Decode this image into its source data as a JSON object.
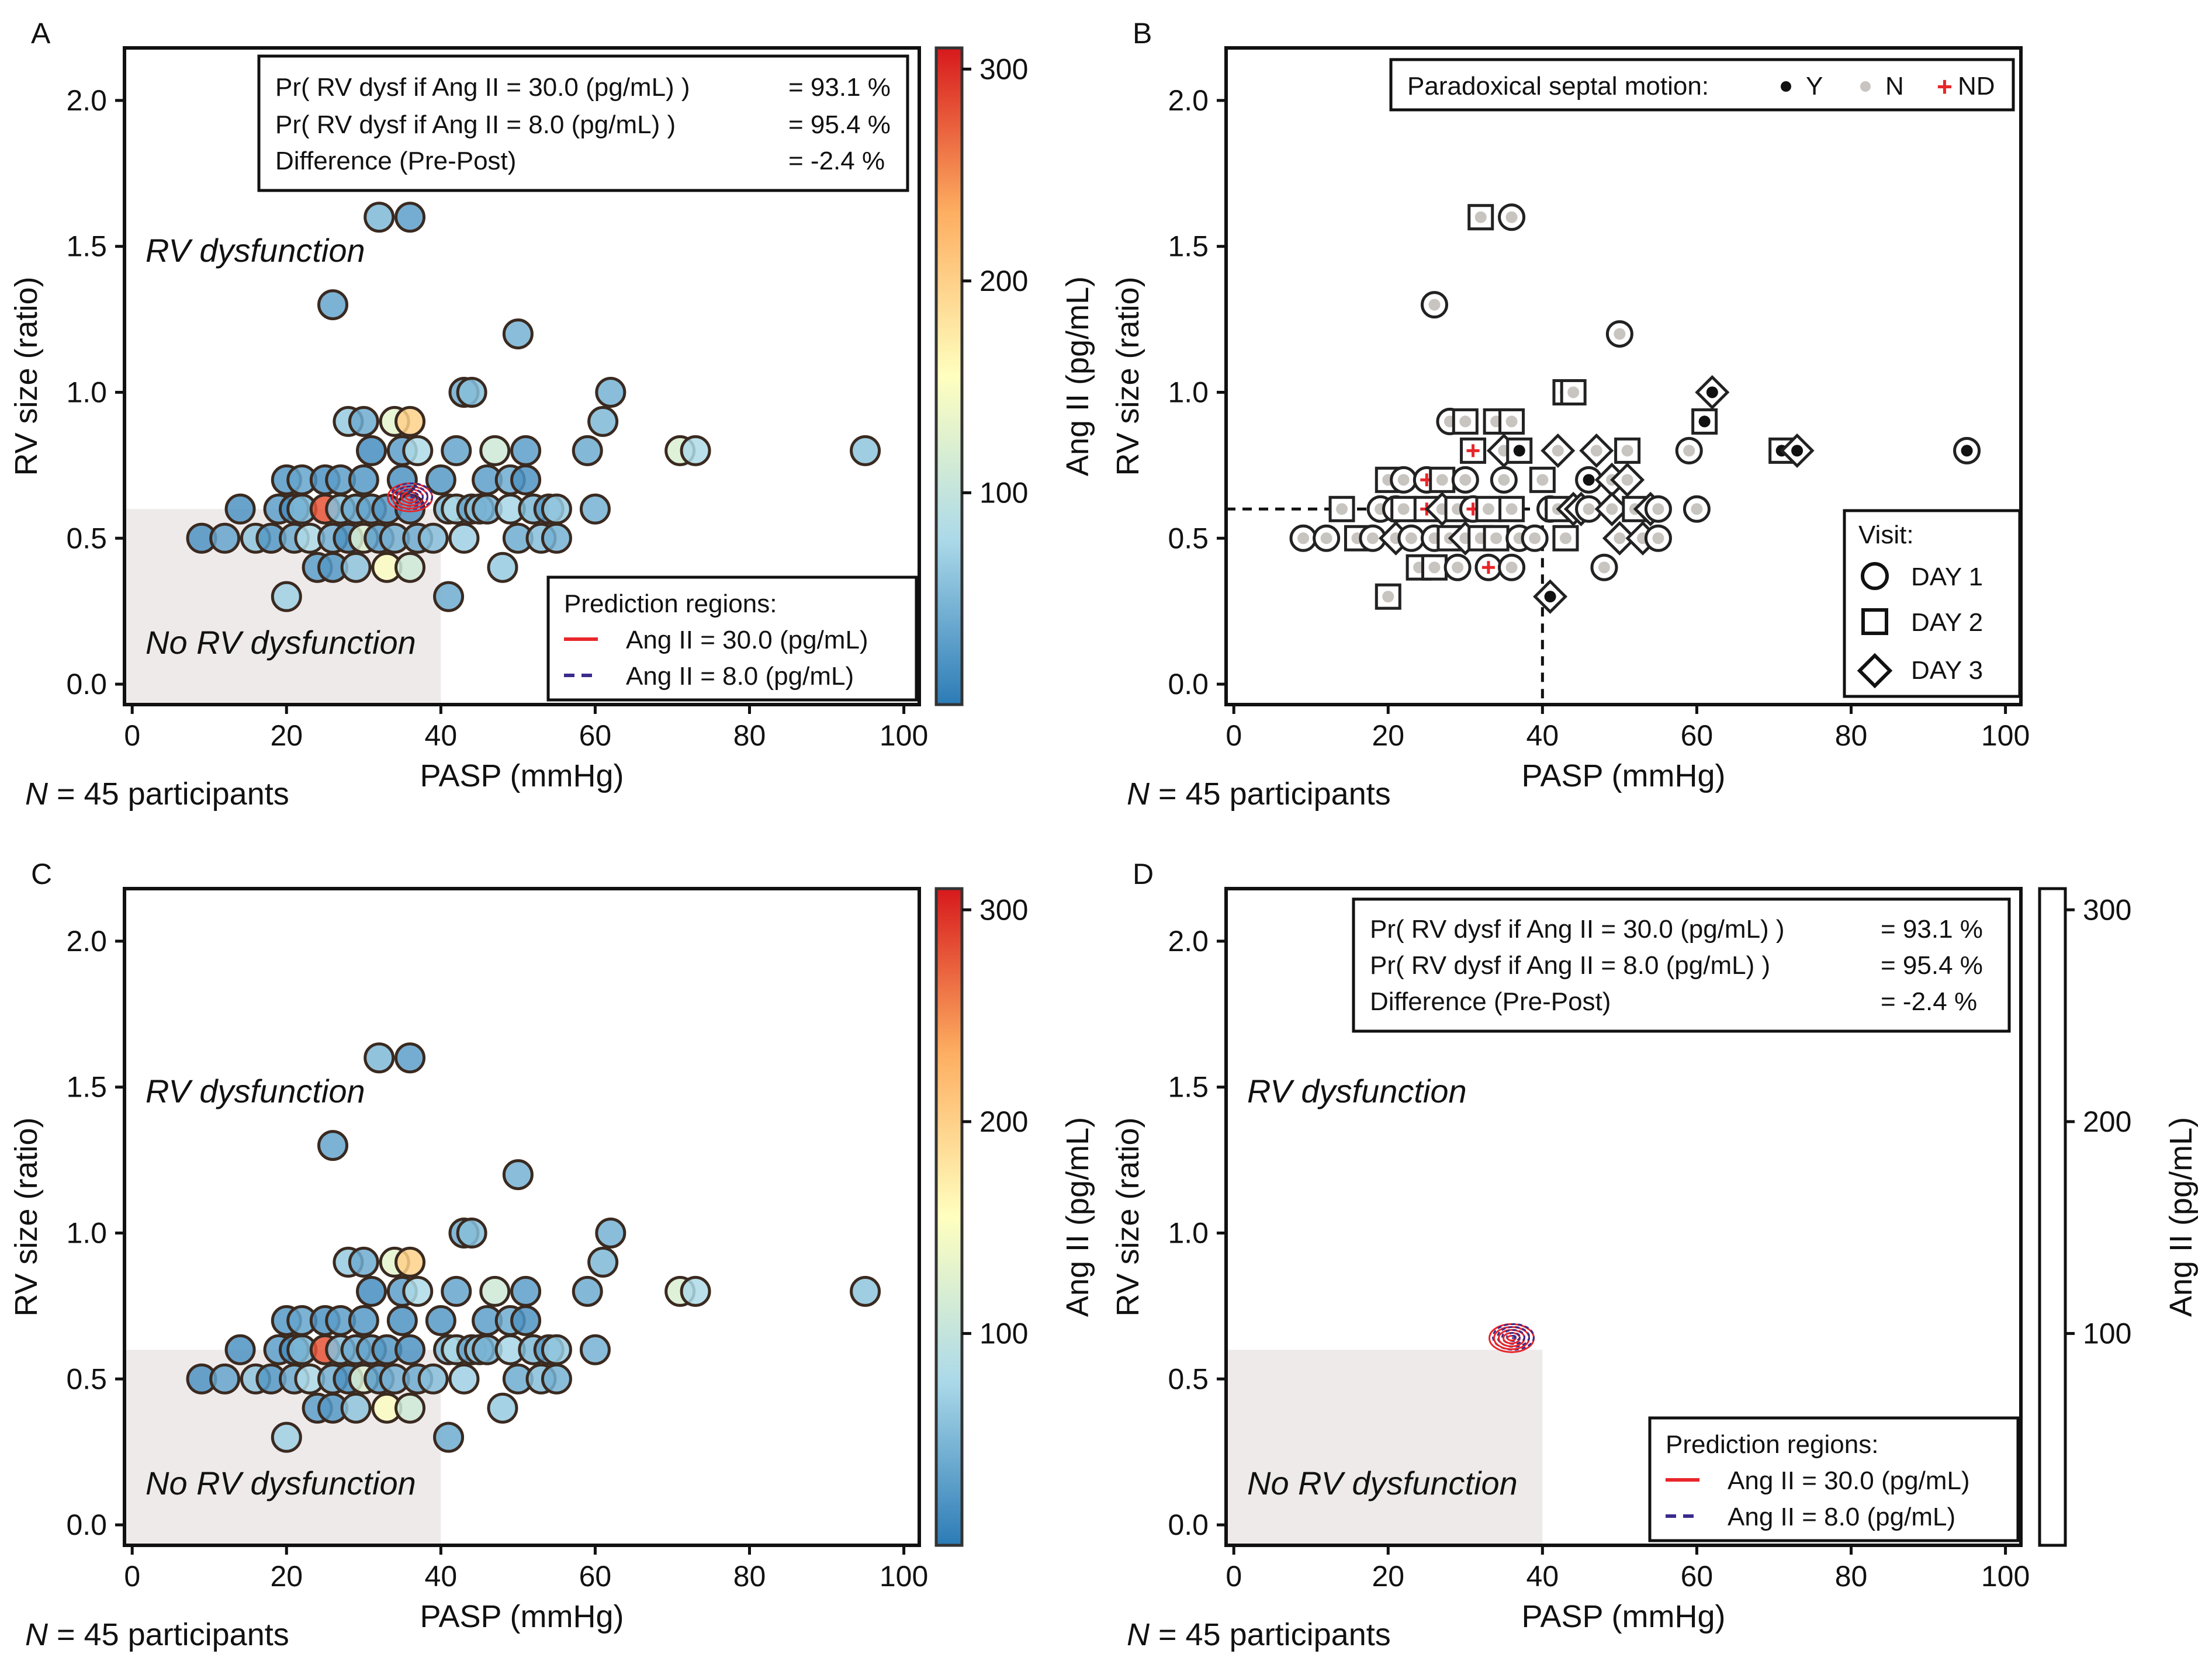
{
  "figure_title": "Figure: RV size vs PASP by Ang II (panels A-D)",
  "colorbar": {
    "label": "Ang II (pg/mL)",
    "ticks": [
      "100",
      "200",
      "300"
    ],
    "tick_values": [
      100,
      200,
      300
    ],
    "range": [
      0,
      310
    ],
    "colors": [
      "#2c7bb6",
      "#abd9e9",
      "#ffffbf",
      "#fdae61",
      "#d7191c"
    ]
  },
  "panels": [
    {
      "letter": "A"
    },
    {
      "letter": "B"
    },
    {
      "letter": "C"
    },
    {
      "letter": "D"
    }
  ],
  "probability_box": {
    "lines": [
      {
        "label": "Pr( RV dysf if Ang II = 30.0 (pg/mL) )",
        "value": "= 93.1 %"
      },
      {
        "label": "Pr( RV dysf if Ang II = 8.0 (pg/mL) )",
        "value": "= 95.4 %"
      },
      {
        "label": "Difference (Pre-Post)",
        "value": "= -2.4 %"
      }
    ]
  },
  "prediction_legend": {
    "title": "Prediction regions:",
    "items": [
      {
        "label": "Ang II = 30.0 (pg/mL)",
        "color": "#e8262a",
        "style": "solid"
      },
      {
        "label": "Ang II = 8.0 (pg/mL)",
        "color": "#3b2a8c",
        "style": "dashed"
      }
    ]
  },
  "septal_legend": {
    "title": "Paradoxical septal motion:",
    "items": [
      {
        "symbol": "●",
        "label": "Y",
        "color": "#111111"
      },
      {
        "symbol": "●",
        "label": "N",
        "color": "#c8c4c0"
      },
      {
        "symbol": "+",
        "label": "ND",
        "color": "#e8262a"
      }
    ]
  },
  "visit_legend": {
    "title": "Visit:",
    "items": [
      {
        "label": "DAY 1",
        "marker": "circle"
      },
      {
        "label": "DAY 2",
        "marker": "square"
      },
      {
        "label": "DAY 3",
        "marker": "diamond"
      }
    ]
  },
  "region_labels": {
    "dysfunction": "RV dysfunction",
    "no_dysfunction": "No RV dysfunction"
  },
  "participants_note": {
    "prefix": "N",
    "suffix": " = 45 participants"
  },
  "chart_data": {
    "type": "scatter",
    "xlabel": "PASP (mmHg)",
    "ylabel": "RV size (ratio)",
    "xlim": [
      -1,
      102
    ],
    "ylim": [
      -0.07,
      2.18
    ],
    "xticks": [
      "0",
      "20",
      "40",
      "60",
      "80",
      "100"
    ],
    "xtick_values": [
      0,
      20,
      40,
      60,
      80,
      100
    ],
    "yticks": [
      "0.0",
      "0.5",
      "1.0",
      "1.5",
      "2.0"
    ],
    "ytick_values": [
      0.0,
      0.5,
      1.0,
      1.5,
      2.0
    ],
    "thresholds": {
      "pasp": 40,
      "rv_size": 0.6
    },
    "prediction_center": {
      "pasp": 36,
      "rv_size": 0.64
    },
    "points": [
      [
        9,
        0.5,
        20,
        1,
        "N"
      ],
      [
        12,
        0.5,
        35,
        1,
        "N"
      ],
      [
        14,
        0.6,
        20,
        2,
        "N"
      ],
      [
        16,
        0.5,
        60,
        2,
        "N"
      ],
      [
        18,
        0.5,
        25,
        1,
        "N"
      ],
      [
        19,
        0.6,
        30,
        1,
        "N"
      ],
      [
        20,
        0.7,
        25,
        2,
        "N"
      ],
      [
        20,
        0.3,
        70,
        2,
        "N"
      ],
      [
        21,
        0.6,
        15,
        1,
        "N"
      ],
      [
        21,
        0.5,
        40,
        3,
        "N"
      ],
      [
        22,
        0.7,
        35,
        1,
        "N"
      ],
      [
        22,
        0.6,
        50,
        2,
        "N"
      ],
      [
        23,
        0.5,
        80,
        1,
        "N"
      ],
      [
        24,
        0.4,
        30,
        2,
        "N"
      ],
      [
        25,
        0.6,
        280,
        2,
        "ND"
      ],
      [
        25,
        0.7,
        20,
        1,
        "ND"
      ],
      [
        26,
        0.5,
        45,
        1,
        "N"
      ],
      [
        26,
        0.4,
        25,
        2,
        "N"
      ],
      [
        26,
        1.3,
        35,
        1,
        "N"
      ],
      [
        27,
        0.7,
        30,
        2,
        "N"
      ],
      [
        27,
        0.6,
        55,
        3,
        "N"
      ],
      [
        28,
        0.5,
        20,
        2,
        "N"
      ],
      [
        28,
        0.9,
        65,
        1,
        "N"
      ],
      [
        29,
        0.6,
        40,
        2,
        "N"
      ],
      [
        29,
        0.4,
        60,
        1,
        "N"
      ],
      [
        30,
        0.9,
        40,
        2,
        "N"
      ],
      [
        30,
        0.5,
        120,
        3,
        "N"
      ],
      [
        30,
        0.7,
        25,
        1,
        "N"
      ],
      [
        31,
        0.6,
        35,
        1,
        "ND"
      ],
      [
        31,
        0.8,
        15,
        2,
        "ND"
      ],
      [
        32,
        1.6,
        50,
        2,
        "N"
      ],
      [
        32,
        0.5,
        30,
        2,
        "N"
      ],
      [
        33,
        0.6,
        25,
        2,
        "N"
      ],
      [
        33,
        0.4,
        150,
        1,
        "ND"
      ],
      [
        34,
        0.9,
        130,
        2,
        "N"
      ],
      [
        34,
        0.5,
        45,
        2,
        "N"
      ],
      [
        35,
        0.7,
        20,
        1,
        "N"
      ],
      [
        35,
        0.8,
        30,
        3,
        "N"
      ],
      [
        36,
        1.6,
        30,
        1,
        "N"
      ],
      [
        36,
        0.9,
        200,
        2,
        "N"
      ],
      [
        36,
        0.6,
        20,
        2,
        "N"
      ],
      [
        36,
        0.4,
        110,
        1,
        "N"
      ],
      [
        37,
        0.8,
        80,
        2,
        "Y"
      ],
      [
        37,
        0.5,
        40,
        1,
        "N"
      ],
      [
        39,
        0.5,
        55,
        1,
        "N"
      ],
      [
        40,
        0.7,
        25,
        2,
        "N"
      ],
      [
        41,
        0.3,
        40,
        3,
        "Y"
      ],
      [
        41,
        0.6,
        50,
        1,
        "N"
      ],
      [
        42,
        0.8,
        35,
        3,
        "N"
      ],
      [
        42,
        0.6,
        80,
        2,
        "N"
      ],
      [
        43,
        1.0,
        40,
        2,
        "N"
      ],
      [
        43,
        0.5,
        70,
        2,
        "N"
      ],
      [
        44,
        1.0,
        55,
        2,
        "N"
      ],
      [
        44,
        0.6,
        35,
        3,
        "N"
      ],
      [
        45,
        0.6,
        60,
        3,
        "Y"
      ],
      [
        46,
        0.7,
        30,
        1,
        "Y"
      ],
      [
        46,
        0.6,
        45,
        1,
        "N"
      ],
      [
        47,
        0.8,
        110,
        3,
        "N"
      ],
      [
        48,
        0.4,
        65,
        1,
        "N"
      ],
      [
        49,
        0.7,
        40,
        3,
        "N"
      ],
      [
        49,
        0.6,
        75,
        3,
        "N"
      ],
      [
        50,
        1.2,
        45,
        1,
        "N"
      ],
      [
        50,
        0.5,
        40,
        3,
        "N"
      ],
      [
        51,
        0.7,
        20,
        3,
        "N"
      ],
      [
        51,
        0.8,
        30,
        2,
        "N"
      ],
      [
        52,
        0.6,
        50,
        2,
        "N"
      ],
      [
        53,
        0.5,
        55,
        3,
        "N"
      ],
      [
        54,
        0.6,
        30,
        3,
        "N"
      ],
      [
        55,
        0.5,
        45,
        1,
        "N"
      ],
      [
        55,
        0.6,
        65,
        1,
        "N"
      ],
      [
        59,
        0.8,
        40,
        1,
        "N"
      ],
      [
        60,
        0.6,
        45,
        1,
        "N"
      ],
      [
        61,
        0.9,
        50,
        2,
        "Y"
      ],
      [
        62,
        1.0,
        45,
        3,
        "Y"
      ],
      [
        71,
        0.8,
        120,
        2,
        "Y"
      ],
      [
        73,
        0.8,
        80,
        3,
        "Y"
      ],
      [
        95,
        0.8,
        60,
        1,
        "Y"
      ]
    ],
    "points_fields": [
      "pasp_mmHg",
      "rv_size_ratio",
      "ang2_pg_per_mL",
      "visit_day",
      "paradoxical_septal_motion"
    ]
  }
}
